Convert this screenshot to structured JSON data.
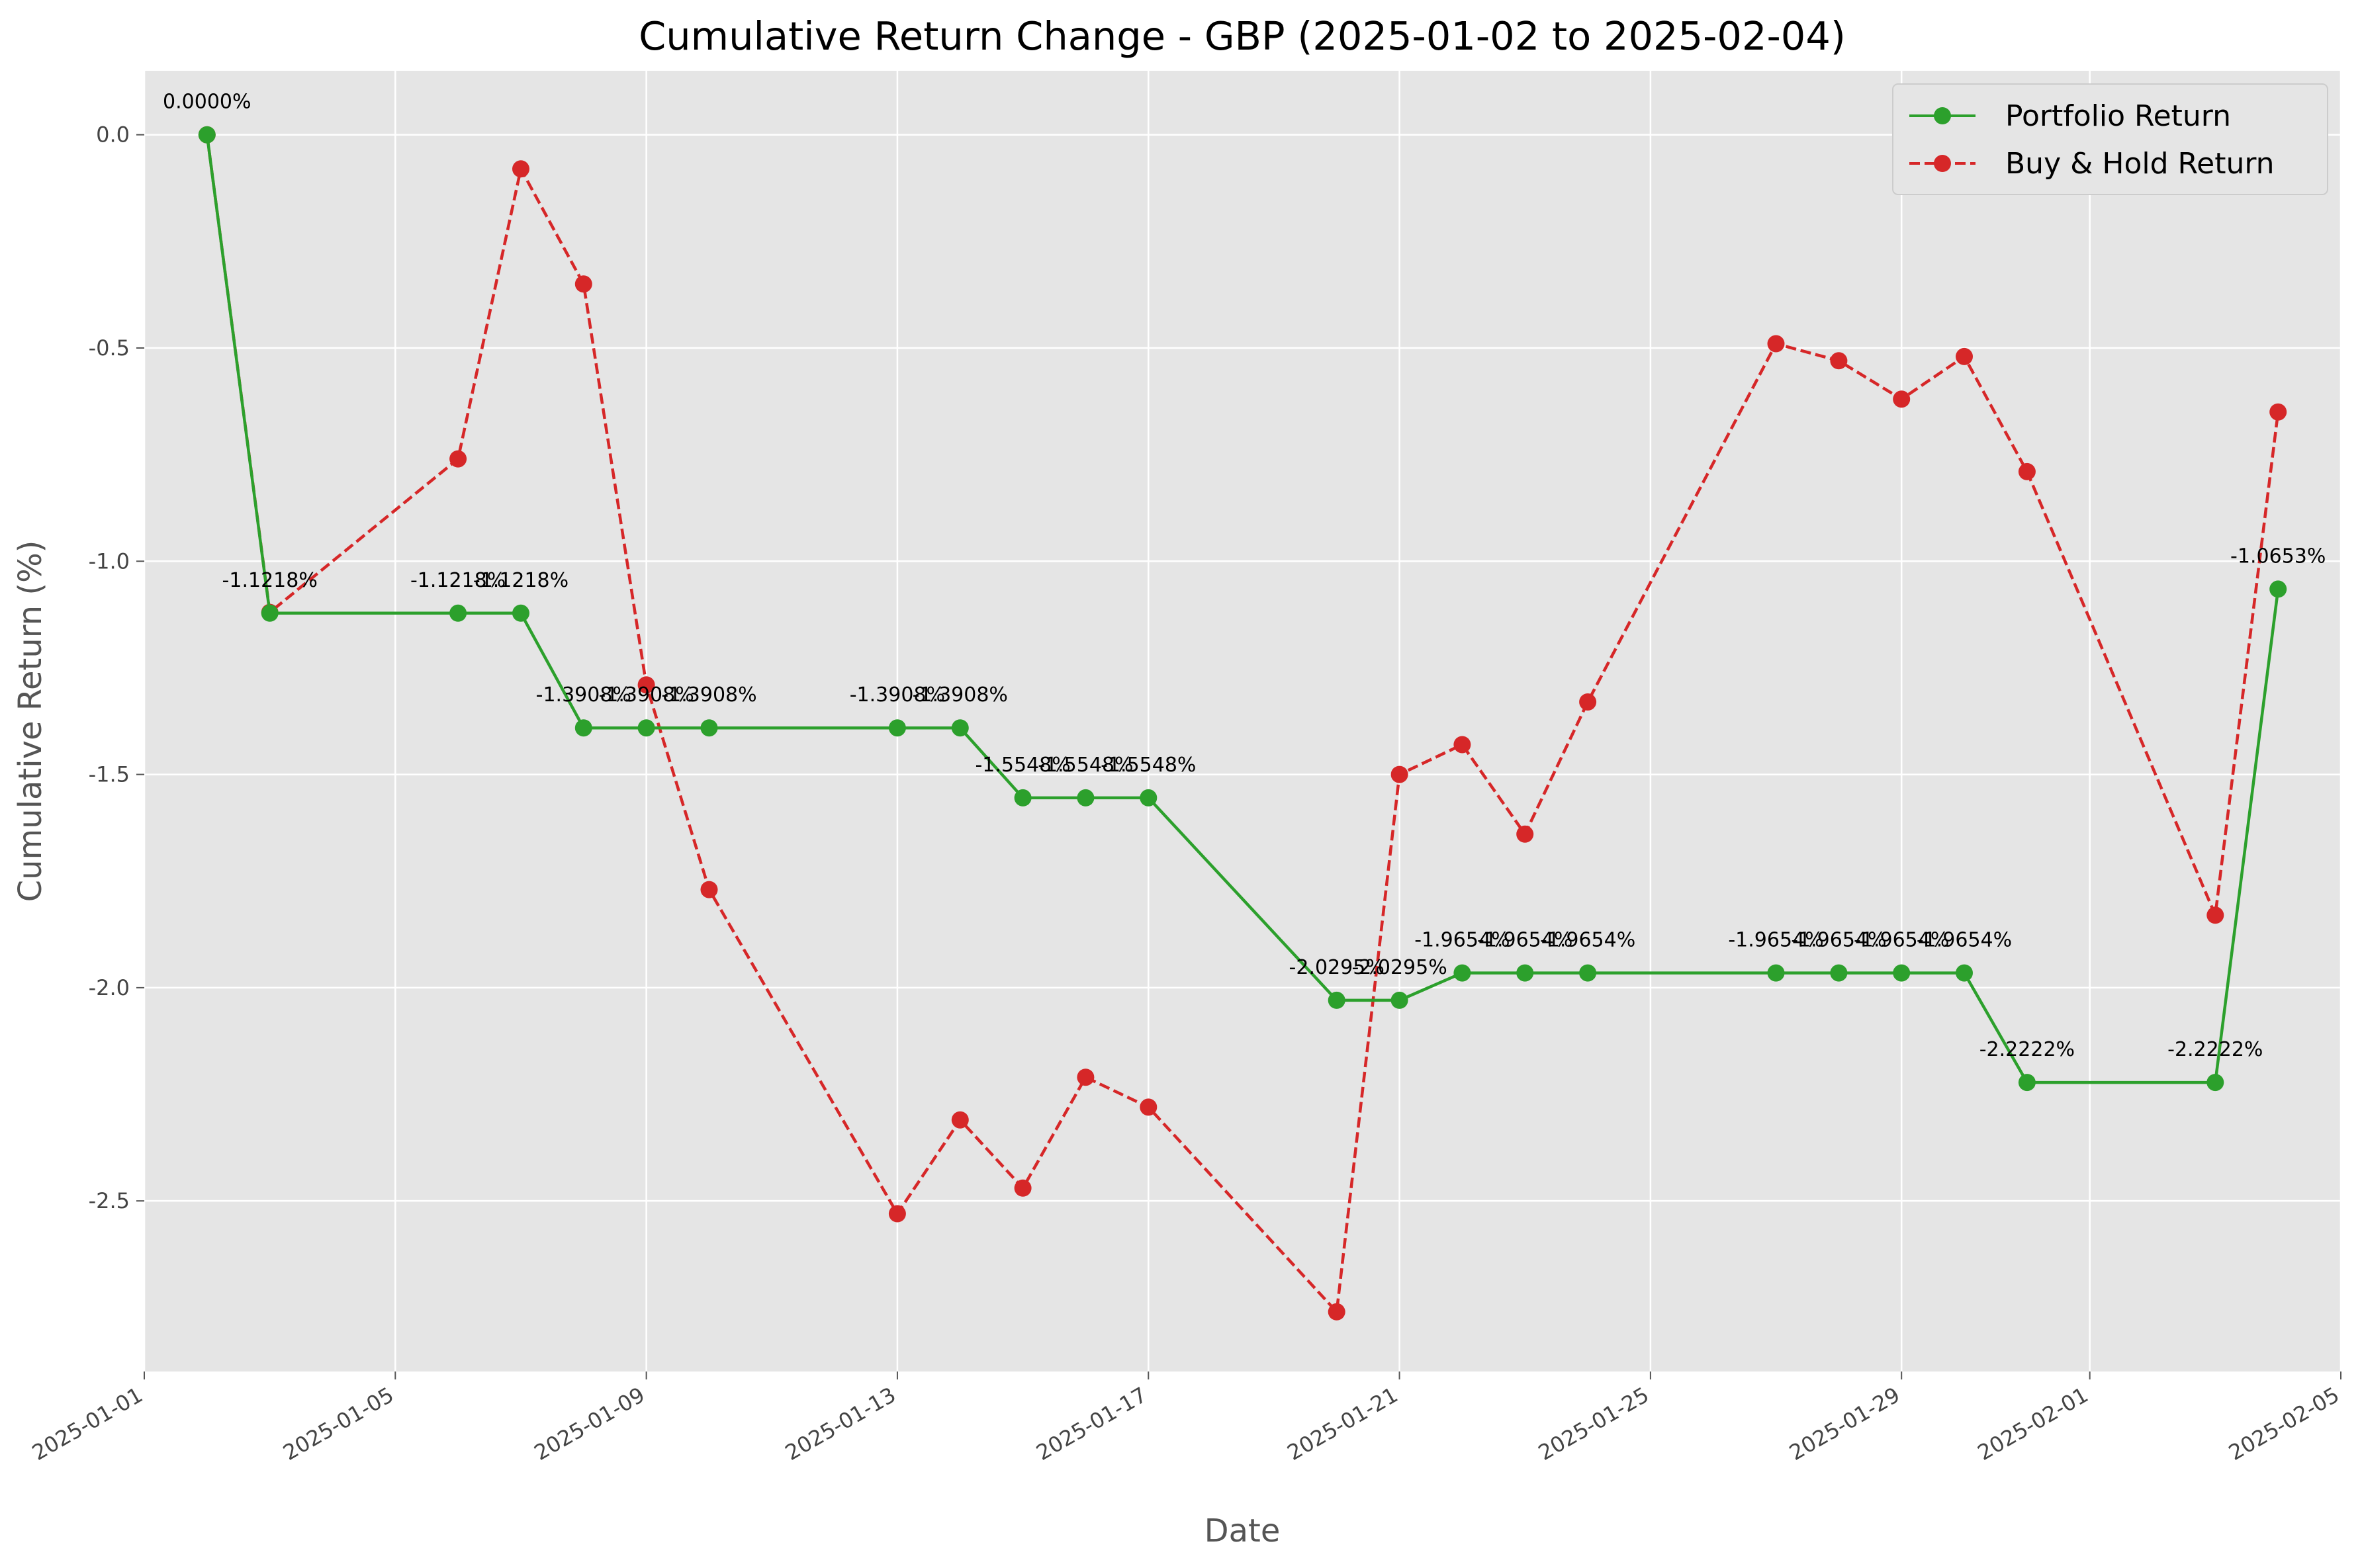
{
  "chart_data": {
    "type": "line",
    "title": "Cumulative Return Change - GBP (2025-01-02 to 2025-02-04)",
    "xlabel": "Date",
    "ylabel": "Cumulative Return (%)",
    "xlim": [
      "2025-01-01",
      "2025-02-05"
    ],
    "ylim": [
      -2.9,
      0.15
    ],
    "x_ticks": [
      "2025-01-01",
      "2025-01-05",
      "2025-01-09",
      "2025-01-13",
      "2025-01-17",
      "2025-01-21",
      "2025-01-25",
      "2025-01-29",
      "2025-02-01",
      "2025-02-05"
    ],
    "y_ticks": [
      0.0,
      -0.5,
      -1.0,
      -1.5,
      -2.0,
      -2.5
    ],
    "y_tick_labels": [
      "0.0",
      "-0.5",
      "-1.0",
      "-1.5",
      "-2.0",
      "-2.5"
    ],
    "grid": true,
    "legend_position": "top-right",
    "dates": [
      "2025-01-02",
      "2025-01-03",
      "2025-01-06",
      "2025-01-07",
      "2025-01-08",
      "2025-01-09",
      "2025-01-10",
      "2025-01-13",
      "2025-01-14",
      "2025-01-15",
      "2025-01-16",
      "2025-01-17",
      "2025-01-20",
      "2025-01-21",
      "2025-01-22",
      "2025-01-23",
      "2025-01-24",
      "2025-01-27",
      "2025-01-28",
      "2025-01-29",
      "2025-01-30",
      "2025-01-31",
      "2025-02-03",
      "2025-02-04"
    ],
    "series": [
      {
        "name": "Portfolio Return",
        "color": "#2ca02c",
        "line_style": "solid",
        "marker": "circle",
        "values": [
          0.0,
          -1.1218,
          -1.1218,
          -1.1218,
          -1.3908,
          -1.3908,
          -1.3908,
          -1.3908,
          -1.3908,
          -1.5548,
          -1.5548,
          -1.5548,
          -2.0295,
          -2.0295,
          -1.9654,
          -1.9654,
          -1.9654,
          -1.9654,
          -1.9654,
          -1.9654,
          -1.9654,
          -2.2222,
          -2.2222,
          -1.0653
        ],
        "labels": [
          "0.0000%",
          "-1.1218%",
          "-1.1218%",
          "-1.1218%",
          "-1.3908%",
          "-1.3908%",
          "-1.3908%",
          "-1.3908%",
          "-1.3908%",
          "-1.5548%",
          "-1.5548%",
          "-1.5548%",
          "-2.0295%",
          "-2.0295%",
          "-1.9654%",
          "-1.9654%",
          "-1.9654%",
          "-1.9654%",
          "-1.9654%",
          "-1.9654%",
          "-1.9654%",
          "-2.2222%",
          "-2.2222%",
          "-1.0653%"
        ]
      },
      {
        "name": "Buy & Hold Return",
        "color": "#d62728",
        "line_style": "dashed",
        "marker": "circle",
        "values": [
          0.0,
          -1.12,
          -0.76,
          -0.08,
          -0.35,
          -1.29,
          -1.77,
          -2.53,
          -2.31,
          -2.47,
          -2.21,
          -2.28,
          -2.76,
          -1.5,
          -1.43,
          -1.64,
          -1.33,
          -0.49,
          -0.53,
          -0.62,
          -0.52,
          -0.79,
          -1.83,
          -0.65
        ]
      }
    ]
  }
}
